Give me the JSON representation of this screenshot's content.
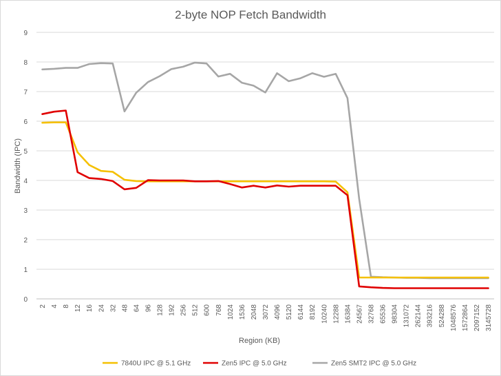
{
  "chart_data": {
    "type": "line",
    "title": "2-byte NOP Fetch Bandwidth",
    "xlabel": "Region (KB)",
    "ylabel": "Bandwidth (IPC)",
    "ylim": [
      0,
      9
    ],
    "y_ticks": [
      "0",
      "1",
      "2",
      "3",
      "4",
      "5",
      "6",
      "7",
      "8",
      "9"
    ],
    "grid": "horizontal",
    "legend_position": "bottom",
    "categories": [
      "2",
      "4",
      "8",
      "12",
      "16",
      "24",
      "32",
      "48",
      "64",
      "96",
      "128",
      "192",
      "256",
      "512",
      "600",
      "768",
      "1024",
      "1536",
      "2048",
      "3072",
      "4096",
      "5120",
      "6144",
      "8192",
      "10240",
      "12288",
      "16384",
      "24567",
      "32768",
      "65536",
      "98304",
      "131072",
      "262144",
      "393216",
      "524288",
      "1048576",
      "1572864",
      "2097152",
      "3145728"
    ],
    "series": [
      {
        "name": "7840U IPC @ 5.1 GHz",
        "color": "#f5c000",
        "values": [
          5.95,
          5.96,
          5.96,
          4.95,
          4.52,
          4.32,
          4.29,
          4.02,
          3.98,
          3.97,
          3.97,
          3.97,
          3.97,
          3.97,
          3.97,
          3.97,
          3.97,
          3.97,
          3.97,
          3.97,
          3.97,
          3.97,
          3.97,
          3.97,
          3.97,
          3.96,
          3.6,
          0.72,
          0.72,
          0.72,
          0.72,
          0.72,
          0.72,
          0.72,
          0.72,
          0.72,
          0.72,
          0.72,
          0.72
        ]
      },
      {
        "name": "Zen5 IPC @ 5.0 GHz",
        "color": "#e00000",
        "values": [
          6.24,
          6.32,
          6.36,
          4.28,
          4.08,
          4.05,
          3.98,
          3.7,
          3.75,
          4.01,
          4.0,
          4.0,
          4.0,
          3.97,
          3.97,
          3.98,
          3.88,
          3.76,
          3.82,
          3.76,
          3.83,
          3.79,
          3.82,
          3.82,
          3.82,
          3.82,
          3.5,
          0.42,
          0.39,
          0.37,
          0.36,
          0.36,
          0.36,
          0.36,
          0.36,
          0.36,
          0.36,
          0.36,
          0.36
        ]
      },
      {
        "name": "Zen5 SMT2 IPC @ 5.0 GHz",
        "color": "#a6a6a6",
        "values": [
          7.75,
          7.77,
          7.8,
          7.8,
          7.93,
          7.96,
          7.95,
          6.33,
          6.96,
          7.32,
          7.52,
          7.76,
          7.84,
          7.98,
          7.95,
          7.51,
          7.6,
          7.3,
          7.2,
          6.97,
          7.62,
          7.35,
          7.45,
          7.62,
          7.5,
          7.6,
          6.78,
          3.38,
          0.75,
          0.73,
          0.72,
          0.71,
          0.71,
          0.7,
          0.7,
          0.7,
          0.7,
          0.7,
          0.7
        ]
      }
    ]
  }
}
